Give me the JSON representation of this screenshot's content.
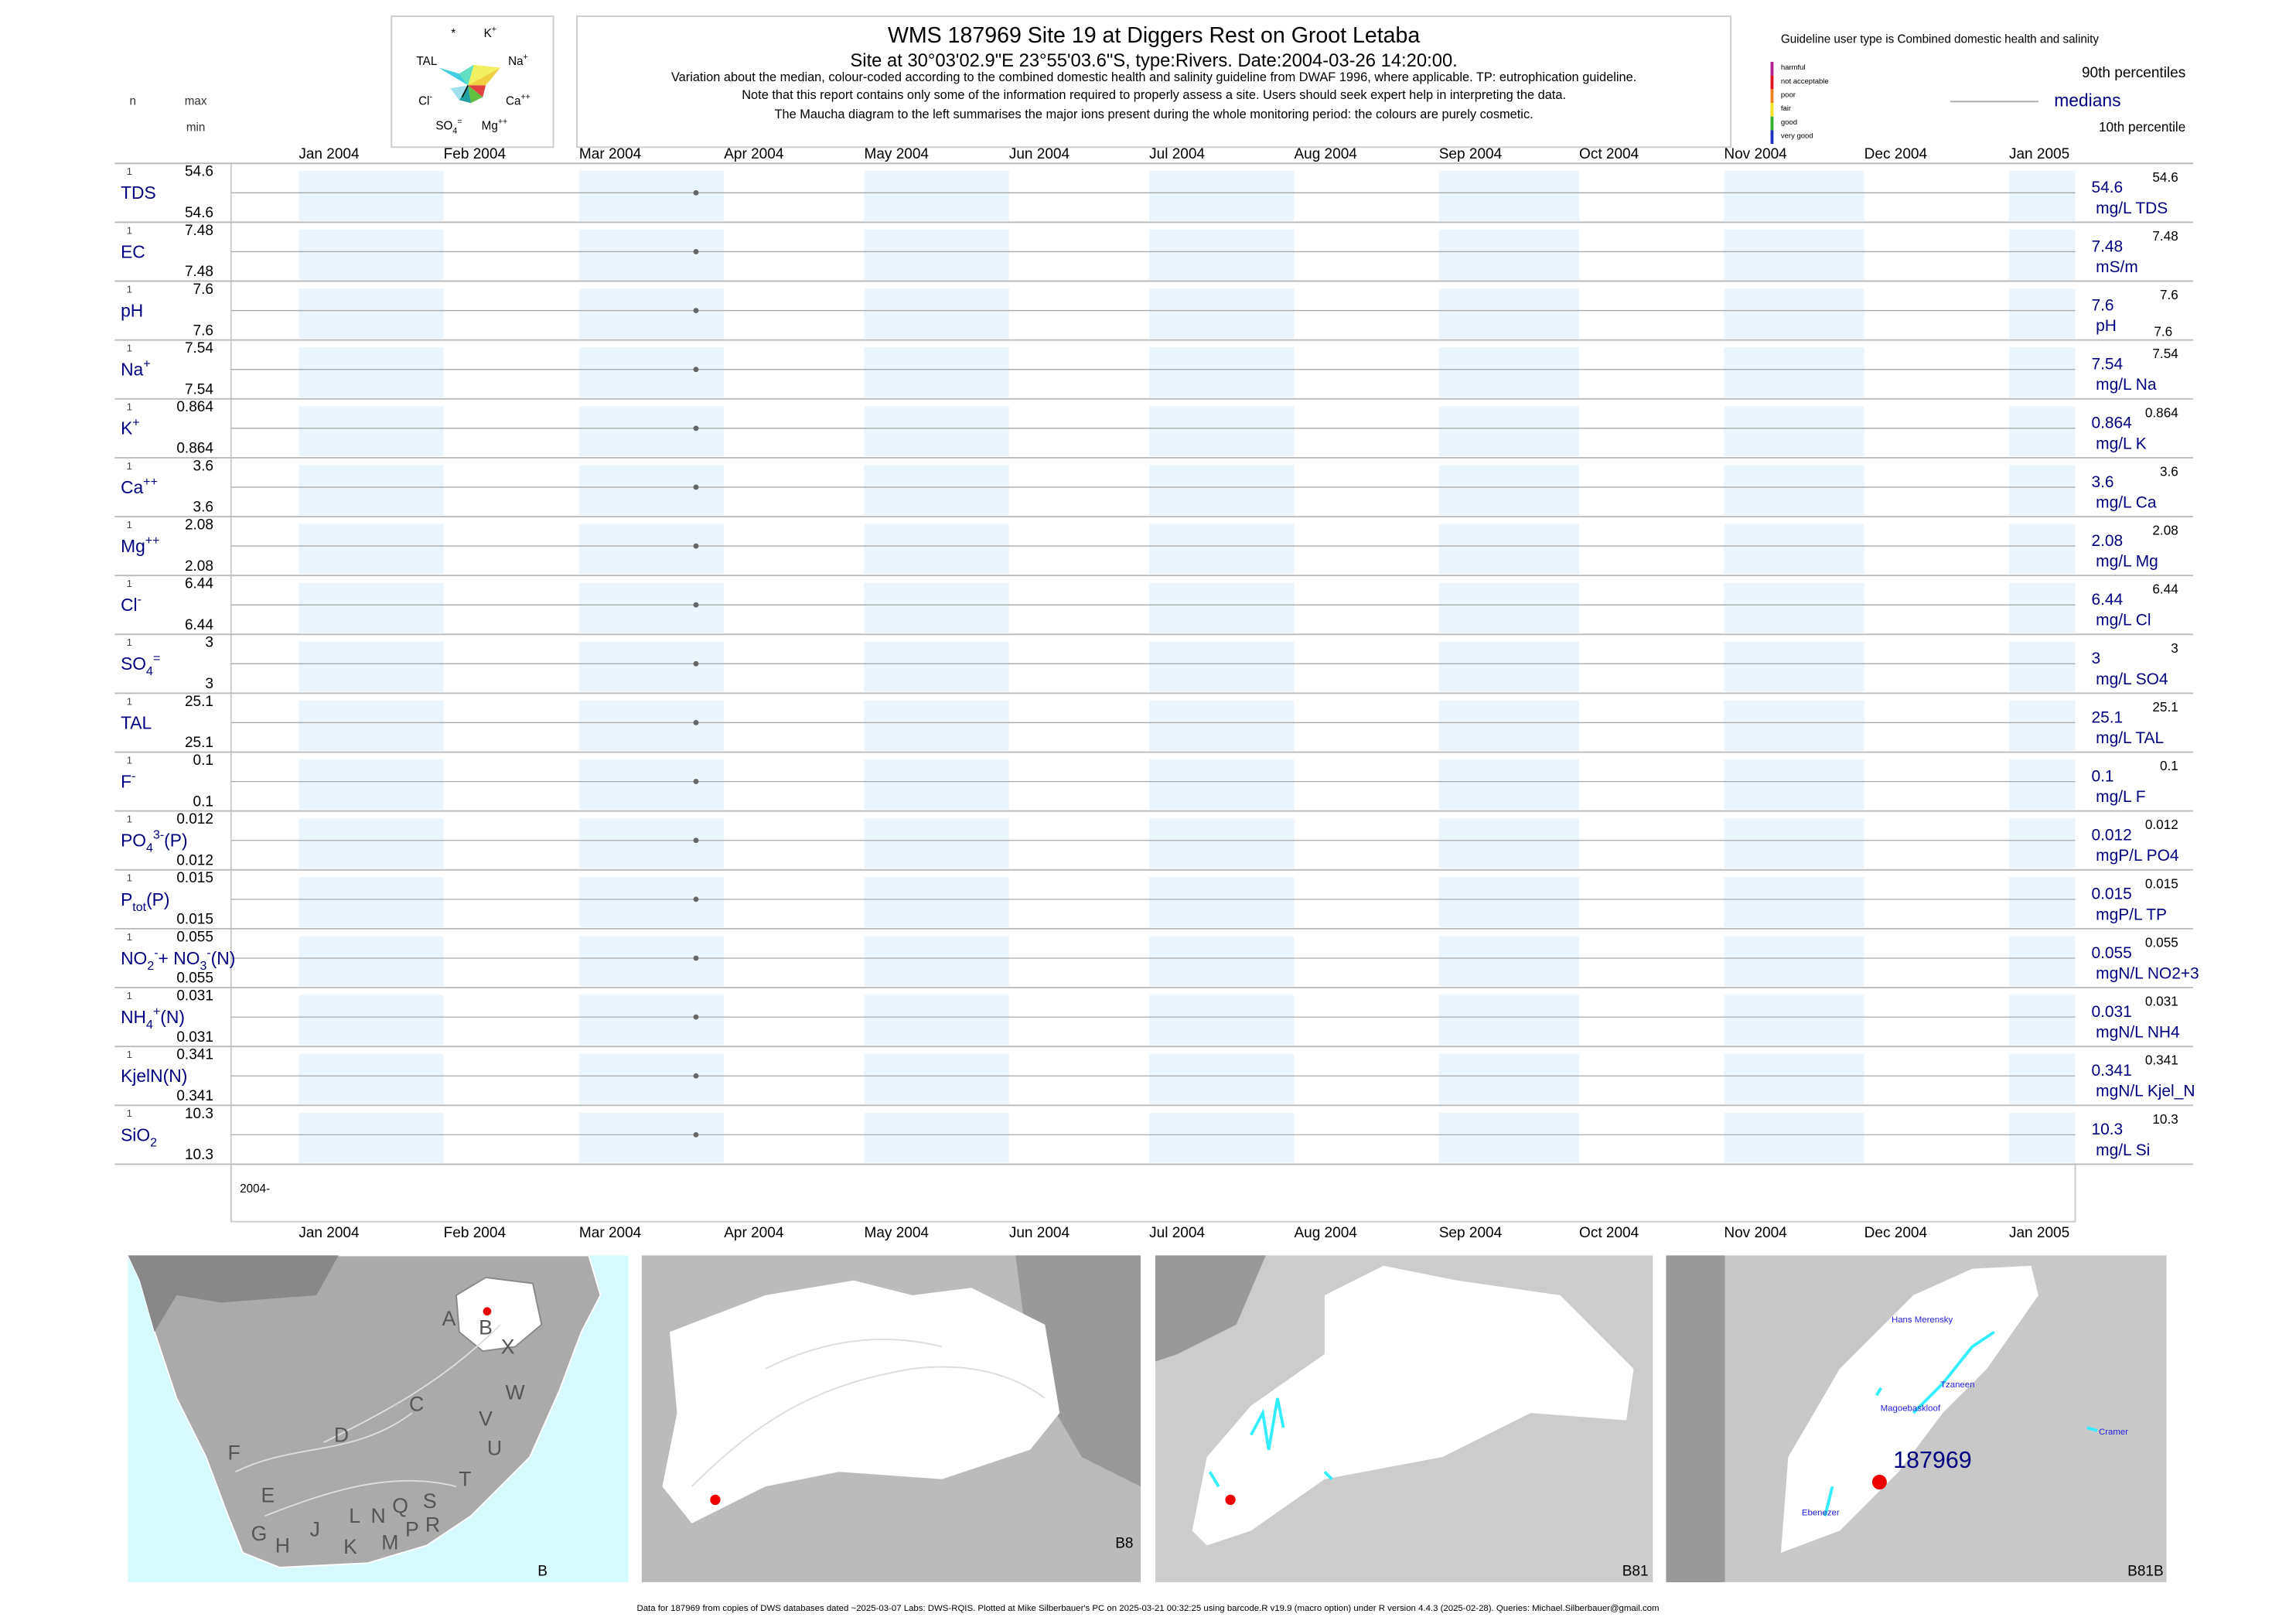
{
  "header": {
    "title": "WMS 187969  Site 19 at Diggers Rest on Groot Letaba",
    "subtitle": "Site at 30°03'02.9\"E 23°55'03.6\"S, type:Rivers. Date:2004-03-26 14:20:00.",
    "notes": [
      "Variation about the median,  colour-coded according to the combined domestic health and salinity guideline from DWAF 1996, where applicable. TP: eutrophication guideline.",
      "Note that this report contains only some of the information required to properly assess a site. Users should seek expert help in interpreting the data.",
      "The Maucha diagram to the left summarises the major ions present during the whole monitoring period: the colours are purely cosmetic."
    ]
  },
  "maucha": [
    [
      {
        "t": "*"
      }
    ],
    [
      {
        "t": "K"
      },
      {
        "t": "+",
        "s": "sup"
      }
    ],
    [
      {
        "t": "TAL"
      }
    ],
    [
      {
        "t": "Na"
      },
      {
        "t": "+",
        "s": "sup"
      }
    ],
    [
      {
        "t": "Cl"
      },
      {
        "t": "-",
        "s": "sup"
      }
    ],
    [
      {
        "t": "Ca"
      },
      {
        "t": "++",
        "s": "sup"
      }
    ],
    [
      {
        "t": "SO"
      },
      {
        "t": "4",
        "s": "sub"
      },
      {
        "t": "=",
        "s": "sup"
      }
    ],
    [
      {
        "t": "Mg"
      },
      {
        "t": "++",
        "s": "sup"
      }
    ]
  ],
  "column_heads": {
    "n": "n",
    "max": "max",
    "min": "min"
  },
  "guideline": {
    "title": "Guideline user type is Combined domestic health and salinity",
    "classes": [
      {
        "label": "harmful",
        "color": "#b0208f"
      },
      {
        "label": "not acceptable",
        "color": "#e01020"
      },
      {
        "label": "poor",
        "color": "#f08020"
      },
      {
        "label": "fair",
        "color": "#f0e020"
      },
      {
        "label": "good",
        "color": "#30b030"
      },
      {
        "label": "very good",
        "color": "#2030c0"
      }
    ],
    "p90": "90th percentiles",
    "medians": "medians",
    "p10": "10th percentile"
  },
  "months": [
    "Jan 2004",
    "Feb 2004",
    "Mar 2004",
    "Apr 2004",
    "May 2004",
    "Jun 2004",
    "Jul 2004",
    "Aug 2004",
    "Sep 2004",
    "Oct 2004",
    "Nov 2004",
    "Dec 2004",
    "Jan 2005"
  ],
  "sample_date": "2004-03-26",
  "axis_year": "2004-",
  "rows": [
    {
      "label": [
        {
          "t": "TDS"
        }
      ],
      "n": 1,
      "max": 54.6,
      "min": 54.6,
      "median": 54.6,
      "p90": 54.6,
      "unit": "mg/L TDS"
    },
    {
      "label": [
        {
          "t": "EC"
        }
      ],
      "n": 1,
      "max": 7.48,
      "min": 7.48,
      "median": 7.48,
      "p90": 7.48,
      "unit": "mS/m"
    },
    {
      "label": [
        {
          "t": "pH"
        }
      ],
      "n": 1,
      "max": 7.6,
      "min": 7.6,
      "median": 7.6,
      "p90": 7.6,
      "p10": 7.6,
      "unit": "pH"
    },
    {
      "label": [
        {
          "t": "Na"
        },
        {
          "t": "+",
          "s": "sup"
        }
      ],
      "n": 1,
      "max": 7.54,
      "min": 7.54,
      "median": 7.54,
      "p90": 7.54,
      "unit": "mg/L Na"
    },
    {
      "label": [
        {
          "t": "K"
        },
        {
          "t": "+",
          "s": "sup"
        }
      ],
      "n": 1,
      "max": 0.864,
      "min": 0.864,
      "median": 0.864,
      "p90": 0.864,
      "unit": "mg/L K"
    },
    {
      "label": [
        {
          "t": "Ca"
        },
        {
          "t": "++",
          "s": "sup"
        }
      ],
      "n": 1,
      "max": 3.6,
      "min": 3.6,
      "median": 3.6,
      "p90": 3.6,
      "unit": "mg/L Ca"
    },
    {
      "label": [
        {
          "t": "Mg"
        },
        {
          "t": "++",
          "s": "sup"
        }
      ],
      "n": 1,
      "max": 2.08,
      "min": 2.08,
      "median": 2.08,
      "p90": 2.08,
      "unit": "mg/L Mg"
    },
    {
      "label": [
        {
          "t": "Cl"
        },
        {
          "t": "-",
          "s": "sup"
        }
      ],
      "n": 1,
      "max": 6.44,
      "min": 6.44,
      "median": 6.44,
      "p90": 6.44,
      "unit": "mg/L Cl"
    },
    {
      "label": [
        {
          "t": "SO"
        },
        {
          "t": "4",
          "s": "sub"
        },
        {
          "t": "=",
          "s": "sup"
        }
      ],
      "n": 1,
      "max": 3,
      "min": 3,
      "median": 3,
      "p90": 3,
      "unit": "mg/L SO4"
    },
    {
      "label": [
        {
          "t": "TAL"
        }
      ],
      "n": 1,
      "max": 25.1,
      "min": 25.1,
      "median": 25.1,
      "p90": 25.1,
      "unit": "mg/L TAL"
    },
    {
      "label": [
        {
          "t": "F"
        },
        {
          "t": "-",
          "s": "sup"
        }
      ],
      "n": 1,
      "max": 0.1,
      "min": 0.1,
      "median": 0.1,
      "p90": 0.1,
      "unit": "mg/L F"
    },
    {
      "label": [
        {
          "t": "PO"
        },
        {
          "t": "4",
          "s": "sub"
        },
        {
          "t": "3-",
          "s": "sup"
        },
        {
          "t": "(P)"
        }
      ],
      "n": 1,
      "max": 0.012,
      "min": 0.012,
      "median": 0.012,
      "p90": 0.012,
      "unit": "mgP/L PO4"
    },
    {
      "label": [
        {
          "t": "P"
        },
        {
          "t": "tot",
          "s": "sub"
        },
        {
          "t": "(P)"
        }
      ],
      "n": 1,
      "max": 0.015,
      "min": 0.015,
      "median": 0.015,
      "p90": 0.015,
      "unit": "mgP/L TP"
    },
    {
      "label": [
        {
          "t": "NO"
        },
        {
          "t": "2",
          "s": "sub"
        },
        {
          "t": "-",
          "s": "sup"
        },
        {
          "t": "+ NO"
        },
        {
          "t": "3",
          "s": "sub"
        },
        {
          "t": "-",
          "s": "sup"
        },
        {
          "t": "(N)"
        }
      ],
      "n": 1,
      "max": 0.055,
      "min": 0.055,
      "median": 0.055,
      "p90": 0.055,
      "unit": "mgN/L NO2+3"
    },
    {
      "label": [
        {
          "t": "NH"
        },
        {
          "t": "4",
          "s": "sub"
        },
        {
          "t": "+",
          "s": "sup"
        },
        {
          "t": "(N)"
        }
      ],
      "n": 1,
      "max": 0.031,
      "min": 0.031,
      "median": 0.031,
      "p90": 0.031,
      "unit": "mgN/L NH4"
    },
    {
      "label": [
        {
          "t": "KjelN(N)"
        }
      ],
      "n": 1,
      "max": 0.341,
      "min": 0.341,
      "median": 0.341,
      "p90": 0.341,
      "unit": "mgN/L Kjel_N"
    },
    {
      "label": [
        {
          "t": "SiO"
        },
        {
          "t": "2",
          "s": "sub"
        }
      ],
      "n": 1,
      "max": 10.3,
      "min": 10.3,
      "median": 10.3,
      "p90": 10.3,
      "unit": "mg/L Si"
    }
  ],
  "maps": [
    {
      "label": "B"
    },
    {
      "label": "B8"
    },
    {
      "label": "B81"
    },
    {
      "label": "B81B"
    }
  ],
  "regions": [
    "A",
    "B",
    "X",
    "C",
    "W",
    "D",
    "V",
    "U",
    "F",
    "T",
    "E",
    "S",
    "Q",
    "N",
    "L",
    "R",
    "P",
    "G",
    "H",
    "J",
    "K",
    "M"
  ],
  "places": [
    "Hans Merensky",
    "Tzaneen",
    "Magoebaskloof",
    "Cramer",
    "Ebenezer",
    "187969"
  ],
  "footer": "Data for 187969 from copies of DWS databases dated ~2025-03-07 Labs: DWS-RQIS. Plotted at Mike Silberbauer's PC on 2025-03-21 00:32:25 using barcode.R v19.9 (macro option) under R version 4.4.3 (2025-02-28). Queries: Michael.Silberbauer@gmail.com"
}
